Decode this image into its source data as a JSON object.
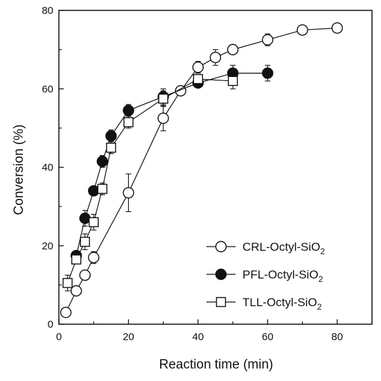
{
  "chart_data": {
    "type": "line",
    "xlabel": "Reaction time (min)",
    "ylabel": "Conversion (%)",
    "xlim": [
      0,
      90
    ],
    "ylim": [
      0,
      80
    ],
    "x_ticks": [
      "0",
      "20",
      "40",
      "60",
      "80"
    ],
    "y_ticks": [
      "0",
      "20",
      "40",
      "60",
      "80"
    ],
    "grid": false,
    "legend_position": "bottom-right",
    "series": [
      {
        "name": "CRL-Octyl-SiO",
        "subscript": "2",
        "marker": "open-circle",
        "points": [
          {
            "x": 2,
            "y": 3,
            "err": 0.8
          },
          {
            "x": 5,
            "y": 8.5,
            "err": 1.0
          },
          {
            "x": 7.5,
            "y": 12.5,
            "err": 1.0
          },
          {
            "x": 10,
            "y": 17,
            "err": 1.5
          },
          {
            "x": 20,
            "y": 33.5,
            "err": 4.8
          },
          {
            "x": 30,
            "y": 52.5,
            "err": 3.2
          },
          {
            "x": 35,
            "y": 59.5,
            "err": 1.0
          },
          {
            "x": 40,
            "y": 65.5,
            "err": 1.5
          },
          {
            "x": 45,
            "y": 68,
            "err": 2.0
          },
          {
            "x": 50,
            "y": 70,
            "err": 1.2
          },
          {
            "x": 60,
            "y": 72.5,
            "err": 1.5
          },
          {
            "x": 70,
            "y": 75,
            "err": 1.2
          },
          {
            "x": 80,
            "y": 75.5,
            "err": 1.2
          }
        ]
      },
      {
        "name": "PFL-Octyl-SiO",
        "subscript": "2",
        "marker": "filled-circle",
        "points": [
          {
            "x": 5,
            "y": 17.5,
            "err": 1.0
          },
          {
            "x": 7.5,
            "y": 27,
            "err": 2.0
          },
          {
            "x": 10,
            "y": 34,
            "err": 1.0
          },
          {
            "x": 12.5,
            "y": 41.5,
            "err": 1.5
          },
          {
            "x": 15,
            "y": 48,
            "err": 1.5
          },
          {
            "x": 20,
            "y": 54.5,
            "err": 1.5
          },
          {
            "x": 30,
            "y": 58,
            "err": 2.0
          },
          {
            "x": 40,
            "y": 61.5,
            "err": 1.0
          },
          {
            "x": 50,
            "y": 64,
            "err": 2.0
          },
          {
            "x": 60,
            "y": 64,
            "err": 2.0
          }
        ]
      },
      {
        "name": "TLL-Octyl-SiO",
        "subscript": "2",
        "marker": "open-square",
        "points": [
          {
            "x": 2.5,
            "y": 10.5,
            "err": 2.0
          },
          {
            "x": 5,
            "y": 16.5,
            "err": 1.0
          },
          {
            "x": 7.5,
            "y": 21,
            "err": 2.0
          },
          {
            "x": 10,
            "y": 26,
            "err": 2.0
          },
          {
            "x": 12.5,
            "y": 34.5,
            "err": 1.5
          },
          {
            "x": 15,
            "y": 45,
            "err": 1.5
          },
          {
            "x": 20,
            "y": 51.5,
            "err": 1.5
          },
          {
            "x": 30,
            "y": 57.5,
            "err": 2.0
          },
          {
            "x": 40,
            "y": 62.5,
            "err": 1.0
          },
          {
            "x": 50,
            "y": 62,
            "err": 2.0
          }
        ]
      }
    ]
  }
}
